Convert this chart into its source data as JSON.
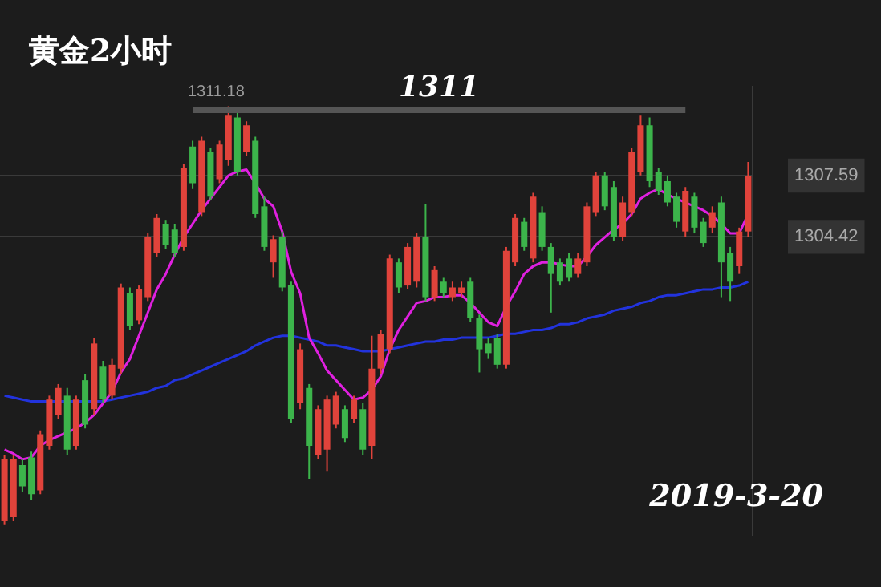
{
  "chart_data": {
    "type": "candlestick",
    "title": "黄金2小时",
    "categories": [
      null,
      null,
      null,
      null,
      null,
      null,
      null,
      null,
      null,
      null,
      null,
      null,
      null,
      null,
      null,
      null,
      null,
      null,
      null,
      null,
      null,
      null,
      null,
      null,
      null,
      null,
      null,
      null,
      null,
      null,
      null,
      null,
      null,
      null,
      null,
      null,
      null,
      null,
      null,
      null,
      null,
      null,
      null,
      null,
      null,
      null,
      null,
      null,
      null,
      null,
      null,
      null,
      null,
      null,
      null,
      null,
      null,
      null,
      null,
      null,
      null,
      null,
      null,
      null,
      null,
      null,
      null,
      null,
      null,
      null,
      null,
      null,
      null,
      null,
      null,
      null,
      null,
      null,
      null,
      null,
      null,
      null,
      null,
      null
    ],
    "ohlc": [
      [
        1289.7,
        1293.1,
        1289.5,
        1292.9
      ],
      [
        1289.9,
        1293.1,
        1289.7,
        1292.9
      ],
      [
        1292.6,
        1292.9,
        1291.2,
        1291.5
      ],
      [
        1293.0,
        1293.3,
        1290.8,
        1291.1
      ],
      [
        1291.3,
        1294.4,
        1291.1,
        1294.2
      ],
      [
        1293.6,
        1296.2,
        1293.4,
        1296.0
      ],
      [
        1295.2,
        1296.8,
        1295.0,
        1296.6
      ],
      [
        1296.2,
        1296.6,
        1293.1,
        1293.4
      ],
      [
        1293.6,
        1296.2,
        1293.4,
        1296.0
      ],
      [
        1297.0,
        1297.3,
        1294.5,
        1294.7
      ],
      [
        1295.5,
        1299.2,
        1295.2,
        1298.9
      ],
      [
        1297.7,
        1298.0,
        1295.8,
        1296.0
      ],
      [
        1296.2,
        1298.1,
        1296.0,
        1297.8
      ],
      [
        1297.6,
        1302.0,
        1297.3,
        1301.8
      ],
      [
        1301.5,
        1301.8,
        1299.6,
        1299.8
      ],
      [
        1300.1,
        1301.9,
        1299.9,
        1301.7
      ],
      [
        1301.3,
        1304.6,
        1301.1,
        1304.4
      ],
      [
        1303.6,
        1305.6,
        1303.4,
        1305.4
      ],
      [
        1305.1,
        1305.3,
        1303.8,
        1304.0
      ],
      [
        1304.8,
        1305.1,
        1303.4,
        1303.6
      ],
      [
        1303.9,
        1308.2,
        1303.7,
        1308.0
      ],
      [
        1309.1,
        1309.4,
        1306.9,
        1307.2
      ],
      [
        1305.7,
        1309.6,
        1305.5,
        1309.4
      ],
      [
        1308.8,
        1309.0,
        1306.3,
        1306.5
      ],
      [
        1307.4,
        1309.4,
        1307.2,
        1309.2
      ],
      [
        1308.4,
        1311.18,
        1308.1,
        1310.7
      ],
      [
        1310.6,
        1310.9,
        1307.6,
        1307.8
      ],
      [
        1308.8,
        1310.4,
        1308.6,
        1310.2
      ],
      [
        1309.4,
        1309.6,
        1305.4,
        1305.6
      ],
      [
        1306.0,
        1306.5,
        1303.7,
        1303.9
      ],
      [
        1303.1,
        1304.5,
        1302.3,
        1304.3
      ],
      [
        1304.4,
        1304.7,
        1301.6,
        1301.8
      ],
      [
        1301.9,
        1302.1,
        1294.8,
        1295.0
      ],
      [
        1295.8,
        1298.9,
        1295.5,
        1298.6
      ],
      [
        1296.6,
        1296.8,
        1291.9,
        1293.6
      ],
      [
        1293.1,
        1295.7,
        1292.9,
        1295.5
      ],
      [
        1293.4,
        1296.2,
        1292.3,
        1296.0
      ],
      [
        1294.7,
        1296.4,
        1294.5,
        1296.2
      ],
      [
        1295.5,
        1295.7,
        1293.8,
        1294.0
      ],
      [
        1295.0,
        1296.2,
        1294.8,
        1296.0
      ],
      [
        1295.5,
        1295.8,
        1293.1,
        1293.4
      ],
      [
        1293.6,
        1299.3,
        1292.9,
        1297.6
      ],
      [
        1297.6,
        1299.6,
        1297.3,
        1299.4
      ],
      [
        1298.6,
        1303.5,
        1298.4,
        1303.3
      ],
      [
        1303.1,
        1303.3,
        1301.5,
        1301.8
      ],
      [
        1301.9,
        1304.1,
        1301.7,
        1303.9
      ],
      [
        1302.1,
        1304.6,
        1301.8,
        1304.4
      ],
      [
        1304.4,
        1306.1,
        1301.1,
        1301.3
      ],
      [
        1301.3,
        1302.9,
        1301.1,
        1302.7
      ],
      [
        1302.1,
        1302.3,
        1301.3,
        1301.5
      ],
      [
        1301.3,
        1302.1,
        1301.1,
        1301.8
      ],
      [
        1301.5,
        1302.1,
        1301.3,
        1301.8
      ],
      [
        1302.1,
        1302.3,
        1300.0,
        1300.2
      ],
      [
        1300.2,
        1300.4,
        1297.4,
        1298.6
      ],
      [
        1298.9,
        1299.2,
        1298.1,
        1298.4
      ],
      [
        1299.2,
        1299.4,
        1297.6,
        1297.8
      ],
      [
        1297.8,
        1303.9,
        1297.6,
        1303.7
      ],
      [
        1303.1,
        1305.6,
        1302.9,
        1305.4
      ],
      [
        1305.2,
        1305.4,
        1303.7,
        1303.9
      ],
      [
        1303.3,
        1306.7,
        1303.1,
        1306.5
      ],
      [
        1305.7,
        1306.0,
        1303.7,
        1303.9
      ],
      [
        1303.9,
        1304.1,
        1300.5,
        1302.5
      ],
      [
        1303.1,
        1303.3,
        1301.9,
        1302.1
      ],
      [
        1303.3,
        1303.6,
        1302.1,
        1302.3
      ],
      [
        1302.5,
        1303.6,
        1302.3,
        1303.3
      ],
      [
        1303.1,
        1306.2,
        1302.9,
        1306.0
      ],
      [
        1305.7,
        1307.8,
        1305.5,
        1307.6
      ],
      [
        1307.6,
        1307.8,
        1305.8,
        1306.0
      ],
      [
        1307.0,
        1307.3,
        1304.2,
        1304.4
      ],
      [
        1304.4,
        1306.5,
        1304.2,
        1306.2
      ],
      [
        1305.7,
        1309.0,
        1305.5,
        1308.8
      ],
      [
        1307.8,
        1310.7,
        1307.6,
        1310.2
      ],
      [
        1310.2,
        1310.6,
        1307.0,
        1307.3
      ],
      [
        1307.8,
        1308.0,
        1306.6,
        1306.8
      ],
      [
        1307.3,
        1307.6,
        1306.0,
        1306.2
      ],
      [
        1306.5,
        1306.7,
        1304.9,
        1305.2
      ],
      [
        1304.7,
        1307.0,
        1304.4,
        1306.8
      ],
      [
        1306.5,
        1306.7,
        1304.6,
        1304.9
      ],
      [
        1305.2,
        1305.4,
        1303.9,
        1304.1
      ],
      [
        1304.9,
        1306.0,
        1304.6,
        1305.7
      ],
      [
        1306.2,
        1306.5,
        1301.3,
        1303.1
      ],
      [
        1303.6,
        1303.9,
        1301.1,
        1302.1
      ],
      [
        1302.9,
        1304.9,
        1302.5,
        1304.7
      ],
      [
        1304.7,
        1308.3,
        1304.4,
        1307.59
      ]
    ],
    "colors": [
      "#e0433b",
      "#e0433b",
      "#3cb44b",
      "#3cb44b",
      "#e0433b",
      "#e0433b",
      "#e0433b",
      "#3cb44b",
      "#e0433b",
      "#3cb44b",
      "#e0433b",
      "#3cb44b",
      "#e0433b",
      "#e0433b",
      "#3cb44b",
      "#e0433b",
      "#e0433b",
      "#e0433b",
      "#3cb44b",
      "#3cb44b",
      "#e0433b",
      "#3cb44b",
      "#e0433b",
      "#3cb44b",
      "#e0433b",
      "#e0433b",
      "#3cb44b",
      "#e0433b",
      "#3cb44b",
      "#3cb44b",
      "#e0433b",
      "#3cb44b",
      "#3cb44b",
      "#e0433b",
      "#3cb44b",
      "#e0433b",
      "#e0433b",
      "#e0433b",
      "#3cb44b",
      "#e0433b",
      "#3cb44b",
      "#e0433b",
      "#e0433b",
      "#e0433b",
      "#3cb44b",
      "#e0433b",
      "#e0433b",
      "#3cb44b",
      "#e0433b",
      "#3cb44b",
      "#e0433b",
      "#e0433b",
      "#3cb44b",
      "#3cb44b",
      "#3cb44b",
      "#3cb44b",
      "#e0433b",
      "#e0433b",
      "#3cb44b",
      "#e0433b",
      "#3cb44b",
      "#3cb44b",
      "#3cb44b",
      "#3cb44b",
      "#e0433b",
      "#e0433b",
      "#e0433b",
      "#3cb44b",
      "#3cb44b",
      "#e0433b",
      "#e0433b",
      "#e0433b",
      "#3cb44b",
      "#3cb44b",
      "#3cb44b",
      "#3cb44b",
      "#e0433b",
      "#3cb44b",
      "#3cb44b",
      "#e0433b",
      "#3cb44b",
      "#3cb44b",
      "#e0433b",
      "#e0433b"
    ],
    "series": [
      {
        "type": "line",
        "color": "#e020e0",
        "values": [
          1293.4,
          1293.2,
          1292.9,
          1293.0,
          1293.6,
          1293.9,
          1294.1,
          1294.3,
          1294.5,
          1294.8,
          1295.2,
          1295.8,
          1296.4,
          1297.4,
          1298.1,
          1299.3,
          1300.5,
          1301.7,
          1302.5,
          1303.5,
          1304.4,
          1305.1,
          1305.8,
          1306.4,
          1307.0,
          1307.6,
          1307.8,
          1307.9,
          1307.2,
          1306.4,
          1306.0,
          1304.7,
          1302.6,
          1301.5,
          1299.2,
          1298.4,
          1297.5,
          1297.0,
          1296.5,
          1296.0,
          1296.1,
          1296.5,
          1297.2,
          1298.6,
          1299.6,
          1300.3,
          1301.0,
          1301.1,
          1301.3,
          1301.3,
          1301.4,
          1301.4,
          1301.0,
          1300.5,
          1300.0,
          1299.8,
          1300.8,
          1301.6,
          1302.5,
          1302.9,
          1303.1,
          1303.1,
          1303.0,
          1302.9,
          1302.9,
          1303.4,
          1304.0,
          1304.4,
          1304.8,
          1305.1,
          1305.6,
          1306.4,
          1306.7,
          1306.9,
          1306.6,
          1306.4,
          1306.2,
          1306.0,
          1305.8,
          1305.5,
          1305.1,
          1304.6,
          1304.6,
          1305.6
        ]
      },
      {
        "type": "line",
        "color": "#2233dd",
        "values": [
          1296.2,
          1296.1,
          1296.0,
          1295.9,
          1295.9,
          1295.9,
          1295.9,
          1295.9,
          1295.9,
          1295.9,
          1295.9,
          1295.9,
          1296.0,
          1296.1,
          1296.2,
          1296.3,
          1296.4,
          1296.6,
          1296.7,
          1297.0,
          1297.1,
          1297.3,
          1297.5,
          1297.7,
          1297.9,
          1298.1,
          1298.3,
          1298.5,
          1298.8,
          1299.0,
          1299.2,
          1299.3,
          1299.3,
          1299.2,
          1299.1,
          1299.0,
          1298.8,
          1298.8,
          1298.7,
          1298.6,
          1298.5,
          1298.5,
          1298.5,
          1298.6,
          1298.7,
          1298.8,
          1298.9,
          1299.0,
          1299.0,
          1299.1,
          1299.1,
          1299.2,
          1299.2,
          1299.2,
          1299.2,
          1299.3,
          1299.4,
          1299.4,
          1299.5,
          1299.6,
          1299.6,
          1299.7,
          1299.9,
          1299.9,
          1300.0,
          1300.2,
          1300.3,
          1300.4,
          1300.6,
          1300.7,
          1300.8,
          1301.0,
          1301.1,
          1301.3,
          1301.4,
          1301.4,
          1301.5,
          1301.6,
          1301.7,
          1301.7,
          1301.8,
          1301.8,
          1301.9,
          1302.1
        ]
      }
    ],
    "ylim": [
      1289,
      1312.2
    ],
    "yticks": [
      1304.42,
      1307.59
    ],
    "grid": "y",
    "tick_labels": "y",
    "legend": false,
    "ref_lines": [
      {
        "axis": "y",
        "value": 1311,
        "label": "1311",
        "color": "#555555"
      }
    ],
    "annotations": [
      {
        "text": "1311.18",
        "y": 1311.18
      },
      "2019-3-20"
    ]
  }
}
